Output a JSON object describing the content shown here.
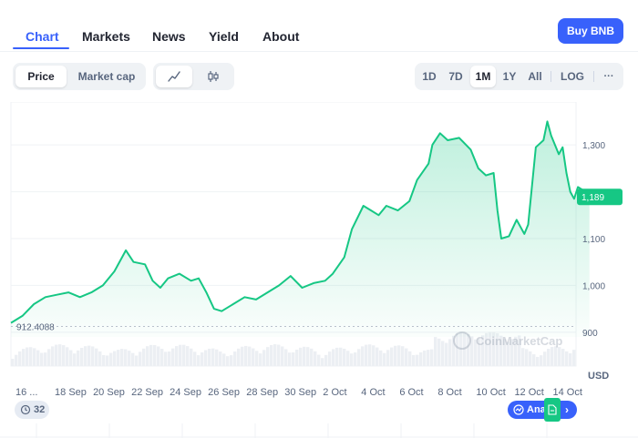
{
  "tabs": {
    "chart": "Chart",
    "markets": "Markets",
    "news": "News",
    "yield": "Yield",
    "about": "About"
  },
  "buy_button": "Buy BNB",
  "view_toggle": {
    "price": "Price",
    "market_cap": "Market cap",
    "selected": "Price"
  },
  "chart_style": {
    "line_icon": "line-chart-icon",
    "candle_icon": "candlestick-icon",
    "selected": "line"
  },
  "ranges": {
    "items": [
      "1D",
      "7D",
      "1M",
      "1Y",
      "All"
    ],
    "selected": "1M",
    "log": "LOG",
    "more": "···"
  },
  "chart_data": {
    "type": "area",
    "ylabel": "USD",
    "ylim": [
      890,
      1380
    ],
    "yticks": [
      "1,300",
      "1,200",
      "1,100",
      "1,000",
      "900"
    ],
    "ytick_values": [
      1300,
      1200,
      1100,
      1000,
      900
    ],
    "y_current_label": "1,189",
    "y_min_label": "912.4088",
    "x_labels": [
      "16 ...",
      "18 Sep",
      "20 Sep",
      "22 Sep",
      "24 Sep",
      "26 Sep",
      "28 Sep",
      "30 Sep",
      "2 Oct",
      "4 Oct",
      "6 Oct",
      "8 Oct",
      "10 Oct",
      "12 Oct",
      "14 Oct"
    ],
    "x_label_days": [
      0,
      2,
      4,
      6,
      8,
      10,
      12,
      14,
      16,
      18,
      20,
      22,
      24,
      26,
      28
    ],
    "x_range_days": [
      0,
      29.5
    ],
    "series": [
      {
        "points": [
          [
            0,
            920
          ],
          [
            0.6,
            935
          ],
          [
            1.2,
            960
          ],
          [
            1.8,
            975
          ],
          [
            2.4,
            980
          ],
          [
            3.0,
            985
          ],
          [
            3.6,
            975
          ],
          [
            4.2,
            985
          ],
          [
            4.8,
            1000
          ],
          [
            5.4,
            1030
          ],
          [
            5.8,
            1060
          ],
          [
            6.0,
            1075
          ],
          [
            6.4,
            1050
          ],
          [
            7.0,
            1045
          ],
          [
            7.4,
            1010
          ],
          [
            7.8,
            995
          ],
          [
            8.2,
            1015
          ],
          [
            8.8,
            1025
          ],
          [
            9.4,
            1010
          ],
          [
            9.8,
            1015
          ],
          [
            10.2,
            985
          ],
          [
            10.6,
            950
          ],
          [
            11.0,
            945
          ],
          [
            11.6,
            960
          ],
          [
            12.2,
            975
          ],
          [
            12.8,
            970
          ],
          [
            13.4,
            985
          ],
          [
            14.0,
            1000
          ],
          [
            14.6,
            1020
          ],
          [
            15.2,
            995
          ],
          [
            15.8,
            1005
          ],
          [
            16.4,
            1010
          ],
          [
            16.8,
            1025
          ],
          [
            17.4,
            1060
          ],
          [
            17.8,
            1120
          ],
          [
            18.4,
            1170
          ],
          [
            18.8,
            1160
          ],
          [
            19.2,
            1150
          ],
          [
            19.6,
            1170
          ],
          [
            20.2,
            1160
          ],
          [
            20.8,
            1180
          ],
          [
            21.2,
            1225
          ],
          [
            21.8,
            1260
          ],
          [
            22.0,
            1300
          ],
          [
            22.4,
            1325
          ],
          [
            22.8,
            1310
          ],
          [
            23.4,
            1315
          ],
          [
            24.0,
            1290
          ],
          [
            24.4,
            1250
          ],
          [
            24.8,
            1235
          ],
          [
            25.2,
            1240
          ],
          [
            25.4,
            1160
          ],
          [
            25.6,
            1100
          ],
          [
            26.0,
            1105
          ],
          [
            26.4,
            1140
          ],
          [
            26.8,
            1110
          ],
          [
            27.0,
            1130
          ],
          [
            27.4,
            1295
          ],
          [
            27.8,
            1310
          ],
          [
            28.0,
            1350
          ],
          [
            28.2,
            1320
          ],
          [
            28.6,
            1280
          ],
          [
            28.8,
            1295
          ],
          [
            29.0,
            1240
          ],
          [
            29.2,
            1200
          ],
          [
            29.4,
            1185
          ],
          [
            29.6,
            1210
          ],
          [
            30.0,
            1200
          ],
          [
            30.2,
            1189
          ]
        ]
      }
    ],
    "colors": {
      "line": "#16c784",
      "fill_top": "#16c784",
      "grid": "#eff2f5",
      "axis_text": "#58667e",
      "current_tag": "#16c784"
    },
    "volume_bars": true,
    "watermark": "CoinMarketCap",
    "legend": "none"
  },
  "usd_label": "USD",
  "events_pill": {
    "icon": "history-icon",
    "count": "32"
  },
  "analysis_pill": {
    "icon": "analysis-icon",
    "label": "Ana",
    "doc_icon": "document-icon",
    "chevron": "›"
  }
}
